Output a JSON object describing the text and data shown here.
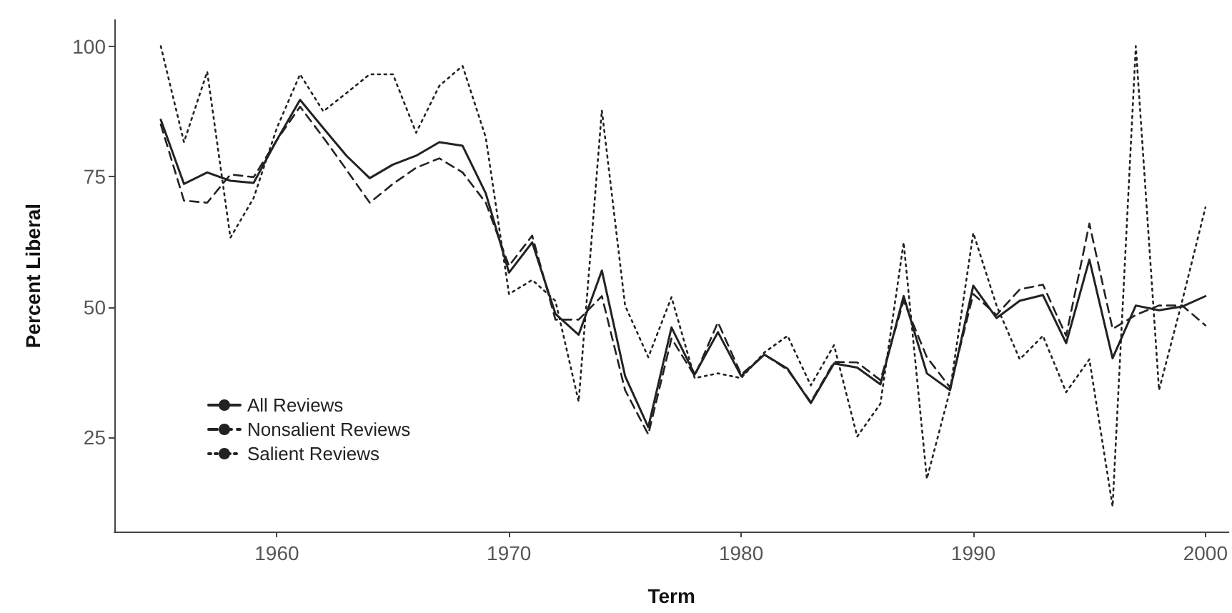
{
  "chart_data": {
    "type": "line",
    "xlabel": "Term",
    "ylabel": "Percent Liberal",
    "x": [
      1955,
      1956,
      1957,
      1958,
      1959,
      1960,
      1961,
      1962,
      1963,
      1964,
      1965,
      1966,
      1967,
      1968,
      1969,
      1970,
      1971,
      1972,
      1973,
      1974,
      1975,
      1976,
      1977,
      1978,
      1979,
      1980,
      1981,
      1982,
      1983,
      1984,
      1985,
      1986,
      1987,
      1988,
      1989,
      1990,
      1991,
      1992,
      1993,
      1994,
      1995,
      1996,
      1997,
      1998,
      1999,
      2000
    ],
    "series": [
      {
        "name": "All Reviews",
        "color": "#222222",
        "line_style": "solid",
        "values": [
          85.9,
          73.6,
          75.8,
          74.2,
          73.8,
          82,
          89.7,
          84.3,
          79,
          74.7,
          77.3,
          79,
          81.6,
          80.9,
          71.8,
          56.6,
          62.4,
          48.7,
          44.7,
          57,
          36.8,
          27,
          46.1,
          37.1,
          45.2,
          36.8,
          40.9,
          38.2,
          31.6,
          39.2,
          38.4,
          35.2,
          52.1,
          37.3,
          34.1,
          54.1,
          47.9,
          51.2,
          52.3,
          43.1,
          59.1,
          40.2,
          50.3,
          49.4,
          50.1,
          52.1
        ]
      },
      {
        "name": "Nonsalient Reviews",
        "color": "#222222",
        "line_style": "dashed",
        "values": [
          85,
          70.4,
          70,
          75.4,
          74.9,
          82,
          88.4,
          82.5,
          76.3,
          70,
          73.6,
          76.7,
          78.5,
          75.8,
          70,
          57.9,
          63.7,
          47.6,
          47.6,
          52.1,
          34.1,
          25.6,
          44,
          36.8,
          47.1,
          37.1,
          40.9,
          38,
          31.8,
          39.5,
          39.4,
          36,
          51.2,
          40.4,
          34.6,
          52.5,
          48.5,
          53.4,
          54.3,
          44.5,
          66,
          45.8,
          48.5,
          50.3,
          50.3,
          46.5
        ]
      },
      {
        "name": "Salient Reviews",
        "color": "#222222",
        "line_style": "dotted",
        "values": [
          100,
          81.6,
          95.1,
          63.3,
          70.9,
          84.3,
          94.6,
          87.5,
          91,
          94.6,
          94.6,
          83.4,
          92.4,
          96.2,
          82.5,
          52.5,
          55.2,
          51.2,
          31.9,
          87.7,
          50.3,
          40.4,
          51.9,
          36.4,
          37.3,
          36.4,
          41.3,
          44.5,
          35,
          42.7,
          25.2,
          31.5,
          62.4,
          17.1,
          34.1,
          64.2,
          50.3,
          40,
          44.5,
          33.7,
          40,
          11.8,
          100,
          34.1,
          51.2,
          69.1
        ]
      }
    ],
    "xlim": [
      1953,
      2001
    ],
    "xticks": [
      1960,
      1970,
      1980,
      1990,
      2000
    ],
    "ylim": [
      7,
      105
    ],
    "yticks": [
      25,
      50,
      75,
      100
    ],
    "grid": false,
    "legend": "bottom left",
    "marker": "none"
  }
}
